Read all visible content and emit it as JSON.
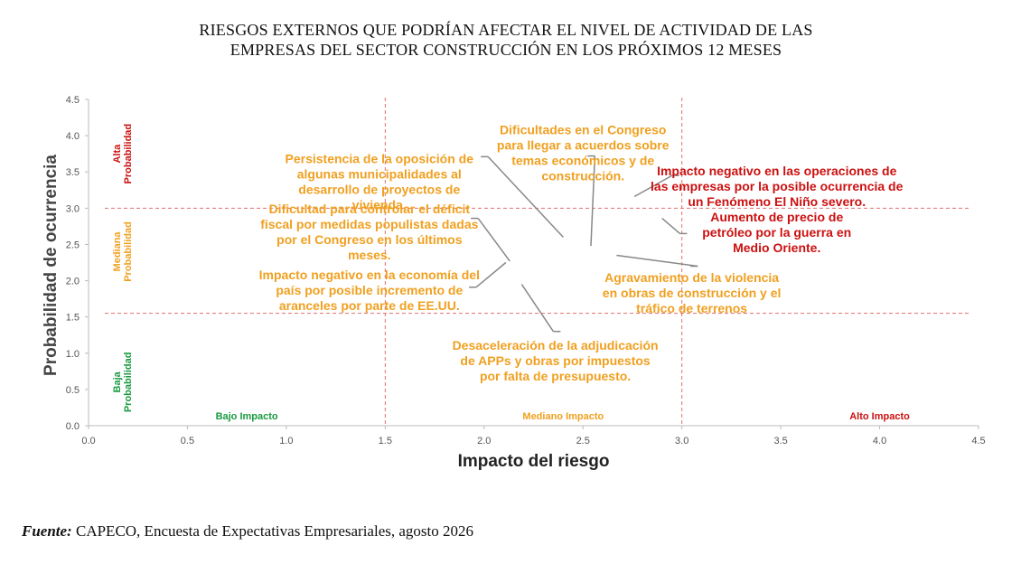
{
  "title": {
    "line1": "RIESGOS EXTERNOS QUE PODRÍAN AFECTAR EL NIVEL DE ACTIVIDAD DE LAS",
    "line2": "EMPRESAS DEL SECTOR CONSTRUCCIÓN EN LOS PRÓXIMOS 12 MESES"
  },
  "source": {
    "label": "Fuente:",
    "text": "CAPECO, Encuesta de Expectativas Empresariales, agosto 2026"
  },
  "colors": {
    "orange": "#f0a020",
    "red": "#cc1010",
    "green": "#1a9a40",
    "divider": "#e07070",
    "axis": "#bbbbbb",
    "leader": "#888888"
  },
  "chart_data": {
    "type": "scatter",
    "xlabel": "Impacto del riesgo",
    "ylabel": "Probabilidad de ocurrencia",
    "xlim": [
      0,
      4.5
    ],
    "ylim": [
      0,
      4.5
    ],
    "xticks": [
      "0.0",
      "0.5",
      "1.0",
      "1.5",
      "2.0",
      "2.5",
      "3.0",
      "3.5",
      "4.0",
      "4.5"
    ],
    "yticks": [
      "0.0",
      "0.5",
      "1.0",
      "1.5",
      "2.0",
      "2.5",
      "3.0",
      "3.5",
      "4.0",
      "4.5"
    ],
    "grid": false,
    "thresholds": {
      "x": [
        1.5,
        3.0
      ],
      "y": [
        1.55,
        3.0
      ]
    },
    "zone_labels": {
      "impact": [
        {
          "text": "Bajo Impacto",
          "x": 0.8,
          "color": "green"
        },
        {
          "text": "Mediano Impacto",
          "x": 2.4,
          "color": "orange"
        },
        {
          "text": "Alto Impacto",
          "x": 4.0,
          "color": "red"
        }
      ],
      "probability": [
        {
          "lines": [
            "Alta",
            "Probabilidad"
          ],
          "y": 3.75,
          "color": "red"
        },
        {
          "lines": [
            "Mediana",
            "Probabilidad"
          ],
          "y": 2.4,
          "color": "orange"
        },
        {
          "lines": [
            "Baja",
            "Probabilidad"
          ],
          "y": 0.6,
          "color": "green"
        }
      ]
    },
    "risks": [
      {
        "lines": [
          "Persistencia de la oposición de",
          "algunas municipalidades al",
          "desarrollo de proyectos de",
          "vivienda."
        ],
        "color": "orange",
        "point": [
          2.4,
          2.6
        ],
        "elbow": [
          2.02,
          3.71
        ],
        "label_at": [
          1.47,
          3.62
        ]
      },
      {
        "lines": [
          "Dificultades en el Congreso",
          "para llegar a acuerdos sobre",
          "temas económicos y de",
          "construcción."
        ],
        "color": "orange",
        "point": [
          2.54,
          2.48
        ],
        "elbow": [
          2.56,
          3.72
        ],
        "label_at": [
          2.5,
          4.02
        ]
      },
      {
        "lines": [
          "Impacto negativo en las operaciones de",
          "las empresas por la posible ocurrencia de",
          "un Fenómeno El Niño severo."
        ],
        "color": "red",
        "point": [
          2.76,
          3.16
        ],
        "elbow": [
          2.95,
          3.45
        ],
        "label_at": [
          3.48,
          3.45
        ]
      },
      {
        "lines": [
          "Aumento de precio de",
          "petróleo por la guerra en",
          "Medio Oriente."
        ],
        "color": "red",
        "point": [
          2.9,
          2.86
        ],
        "elbow": [
          2.99,
          2.65
        ],
        "label_at": [
          3.48,
          2.82
        ]
      },
      {
        "lines": [
          "Dificultad para controlar el déficit",
          "fiscal por medidas populistas dadas",
          "por el Congreso en los últimos",
          "meses."
        ],
        "color": "orange",
        "point": [
          2.13,
          2.27
        ],
        "elbow": [
          1.97,
          2.86
        ],
        "label_at": [
          1.42,
          2.93
        ]
      },
      {
        "lines": [
          "Impacto negativo en la economía del",
          "país por posible incremento de",
          "aranceles por parte de EE.UU."
        ],
        "color": "orange",
        "point": [
          2.11,
          2.25
        ],
        "elbow": [
          1.96,
          1.91
        ],
        "label_at": [
          1.42,
          2.02
        ]
      },
      {
        "lines": [
          "Agravamiento de la violencia",
          "en obras de construcción y el",
          "tráfico de terrenos"
        ],
        "color": "orange",
        "point": [
          2.67,
          2.35
        ],
        "elbow": [
          3.08,
          2.2
        ],
        "label_at": [
          3.05,
          1.98
        ]
      },
      {
        "lines": [
          "Desaceleración de la adjudicación",
          "de APPs y obras por impuestos",
          "por falta de presupuesto."
        ],
        "color": "orange",
        "point": [
          2.19,
          1.95
        ],
        "elbow": [
          2.35,
          1.3
        ],
        "label_at": [
          2.36,
          1.05
        ]
      }
    ]
  }
}
